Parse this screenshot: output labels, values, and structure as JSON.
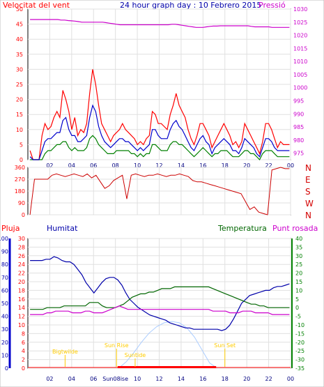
{
  "header": {
    "left_title": "Velocitat del vent",
    "center_title": "24 hour graph day : 10 Febrero 2015",
    "right_title": "Pressió"
  },
  "bottom_header": {
    "pluja": "Pluja",
    "humitat": "Humitat",
    "temperatura": "Temperatura",
    "punt_rosada": "Punt rosada"
  },
  "colors": {
    "wind": "#ff0000",
    "wind_avg": "#0000cc",
    "gust_green": "#008000",
    "pressure": "#cc00cc",
    "humidity": "#0000aa",
    "temperature": "#006600",
    "dewpoint": "#cc00cc",
    "rain": "#ff0000",
    "solar": "#aaccff",
    "sun_text": "#ffcc00"
  },
  "chart_data": [
    {
      "type": "line",
      "name": "wind-pressure",
      "x_ticks": [
        "02",
        "04",
        "06",
        "08",
        "10",
        "12",
        "14",
        "16",
        "18",
        "20",
        "22",
        "00"
      ],
      "y_left_ticks": [
        "0",
        "5",
        "10",
        "15",
        "20",
        "25",
        "30",
        "35",
        "40",
        "45",
        "50"
      ],
      "y_right_ticks": [
        "975",
        "980",
        "985",
        "990",
        "995",
        "1000",
        "1005",
        "1010",
        "1015",
        "1020",
        "1025",
        "1030"
      ],
      "ylim_left": [
        0,
        50
      ],
      "ylim_right": [
        972.5,
        1030
      ],
      "wind_max": [
        3,
        0,
        0,
        0,
        8,
        12,
        10,
        11,
        14,
        16,
        14,
        23,
        20,
        16,
        10,
        14,
        8,
        10,
        9,
        12,
        22,
        30,
        25,
        18,
        12,
        10,
        8,
        6,
        8,
        9,
        10,
        12,
        10,
        9,
        8,
        7,
        5,
        6,
        5,
        7,
        8,
        16,
        15,
        12,
        12,
        11,
        10,
        15,
        18,
        22,
        18,
        16,
        14,
        10,
        7,
        5,
        8,
        12,
        12,
        10,
        8,
        4,
        6,
        8,
        10,
        12,
        10,
        8,
        5,
        6,
        4,
        6,
        12,
        10,
        8,
        6,
        4,
        2,
        6,
        12,
        12,
        10,
        7,
        4,
        6,
        5,
        5,
        5
      ],
      "wind_avg": [
        1,
        0,
        0,
        0,
        3,
        6,
        7,
        7,
        8,
        9,
        9,
        13,
        14,
        10,
        8,
        8,
        6,
        6,
        7,
        8,
        14,
        18,
        16,
        11,
        8,
        6,
        5,
        4,
        5,
        6,
        7,
        7,
        6,
        6,
        5,
        4,
        3,
        4,
        3,
        4,
        5,
        10,
        10,
        8,
        7,
        7,
        7,
        10,
        12,
        13,
        11,
        10,
        8,
        6,
        4,
        3,
        5,
        7,
        8,
        6,
        5,
        2,
        4,
        5,
        6,
        7,
        6,
        5,
        3,
        3,
        2,
        4,
        7,
        6,
        5,
        4,
        2,
        1,
        4,
        7,
        7,
        6,
        4,
        3,
        3,
        3,
        3,
        3
      ],
      "wind_low": [
        0,
        0,
        0,
        0,
        0,
        2,
        3,
        3,
        4,
        5,
        5,
        6,
        6,
        4,
        3,
        4,
        3,
        3,
        3,
        4,
        7,
        8,
        7,
        5,
        4,
        3,
        2,
        2,
        2,
        3,
        3,
        3,
        3,
        3,
        2,
        2,
        1,
        2,
        1,
        2,
        2,
        5,
        5,
        4,
        3,
        3,
        3,
        5,
        6,
        6,
        5,
        5,
        4,
        3,
        2,
        1,
        2,
        3,
        4,
        3,
        2,
        1,
        2,
        2,
        3,
        3,
        3,
        2,
        1,
        1,
        1,
        2,
        3,
        3,
        2,
        2,
        1,
        0,
        2,
        3,
        3,
        3,
        2,
        1,
        1,
        1,
        1,
        1
      ],
      "pressure": [
        1026,
        1026,
        1026,
        1026,
        1026,
        1026,
        1026,
        1026,
        1026,
        1025.8,
        1025.8,
        1025.6,
        1025.5,
        1025.4,
        1025.2,
        1025,
        1025,
        1025,
        1025,
        1025,
        1025,
        1025,
        1024.8,
        1024.6,
        1024.4,
        1024.2,
        1024,
        1024,
        1024,
        1024,
        1024,
        1024,
        1024,
        1024,
        1024,
        1024,
        1024,
        1024,
        1024,
        1024,
        1024,
        1024.2,
        1024.2,
        1024,
        1023.8,
        1023.6,
        1023.4,
        1023.2,
        1023,
        1023,
        1023,
        1023.2,
        1023.4,
        1023.5,
        1023.5,
        1023.6,
        1023.6,
        1023.6,
        1023.6,
        1023.6,
        1023.6,
        1023.6,
        1023.6,
        1023.6,
        1023.4,
        1023.2,
        1023.2,
        1023.2,
        1023.2,
        1023.2,
        1023,
        1023,
        1023,
        1023,
        1023,
        1023
      ]
    },
    {
      "type": "line",
      "name": "wind-direction",
      "y_ticks": [
        "0",
        "90",
        "180",
        "270",
        "360"
      ],
      "ylim": [
        0,
        360
      ],
      "dir_labels": [
        "N",
        "W",
        "S",
        "E",
        "N"
      ],
      "direction": [
        0,
        270,
        270,
        270,
        270,
        300,
        310,
        300,
        290,
        300,
        310,
        300,
        290,
        310,
        280,
        300,
        250,
        200,
        220,
        260,
        280,
        300,
        120,
        300,
        310,
        300,
        290,
        300,
        300,
        310,
        300,
        290,
        300,
        300,
        310,
        300,
        290,
        260,
        250,
        250,
        240,
        230,
        220,
        210,
        200,
        190,
        180,
        170,
        160,
        100,
        40,
        60,
        20,
        10,
        0,
        340,
        350,
        360,
        350,
        350
      ]
    },
    {
      "type": "line",
      "name": "rain-humidity-temperature",
      "y_pluja_ticks": [
        "0",
        "2",
        "4",
        "6",
        "8",
        "10",
        "12",
        "14",
        "16",
        "18",
        "20",
        "22",
        "24",
        "26",
        "28",
        "30"
      ],
      "y_humitat_ticks": [
        "0",
        "10",
        "20",
        "30",
        "40",
        "50",
        "60",
        "70",
        "80",
        "90",
        "100"
      ],
      "y_temp_ticks": [
        "-35",
        "-30",
        "-25",
        "-20",
        "-15",
        "-10",
        "-5",
        "0",
        "5",
        "10",
        "15",
        "20",
        "25",
        "30",
        "35",
        "40"
      ],
      "ylim_humitat": [
        0,
        100
      ],
      "ylim_temp": [
        -35,
        40
      ],
      "humidity": [
        83,
        83,
        83,
        83,
        84,
        84,
        86,
        85,
        83,
        82,
        82,
        80,
        76,
        72,
        66,
        62,
        58,
        62,
        66,
        69,
        70,
        70,
        68,
        64,
        58,
        53,
        50,
        47,
        45,
        43,
        41,
        40,
        39,
        38,
        37,
        35,
        34,
        33,
        32,
        31,
        31,
        30,
        30,
        30,
        30,
        30,
        30,
        30,
        29,
        30,
        33,
        38,
        44,
        50,
        53,
        56,
        57,
        58,
        59,
        60,
        60,
        62,
        63,
        63,
        64,
        65
      ],
      "temperature": [
        -1,
        -1,
        -1,
        -1,
        0,
        0,
        0,
        0,
        1,
        1,
        1,
        1,
        1,
        1,
        3,
        3,
        3,
        1,
        0,
        0,
        0,
        1,
        2,
        4,
        6,
        7,
        8,
        8,
        9,
        9,
        10,
        11,
        11,
        11,
        12,
        12,
        12,
        12,
        12,
        12,
        12,
        12,
        12,
        11,
        10,
        9,
        8,
        7,
        6,
        5,
        4,
        3,
        2,
        2,
        1,
        1,
        0,
        0,
        0,
        0,
        0,
        0
      ],
      "dewpoint": [
        -4,
        -4,
        -4,
        -4,
        -3,
        -3,
        -2,
        -2,
        -2,
        -2,
        -3,
        -3,
        -3,
        -2,
        -2,
        -3,
        -3,
        -3,
        -2,
        -1,
        0,
        1,
        0,
        -1,
        -1,
        -1,
        -1,
        -1,
        -1,
        -1,
        -1,
        -1,
        -1,
        -1,
        -1,
        -1,
        -1,
        -1,
        -1,
        -1,
        -1,
        -1,
        -1,
        -2,
        -2,
        -2,
        -2,
        -3,
        -3,
        -3,
        -2,
        -2,
        -2,
        -3,
        -3,
        -3,
        -3,
        -4,
        -4,
        -4,
        -4,
        -4
      ],
      "solar": [
        0,
        5,
        12,
        20,
        27,
        32,
        35,
        36,
        35,
        31,
        24,
        14,
        4,
        0
      ],
      "annotations": [
        "Bigtwilde",
        "Sun Rise",
        "Suntide",
        "Sun Set",
        "Sun08ise"
      ]
    }
  ]
}
